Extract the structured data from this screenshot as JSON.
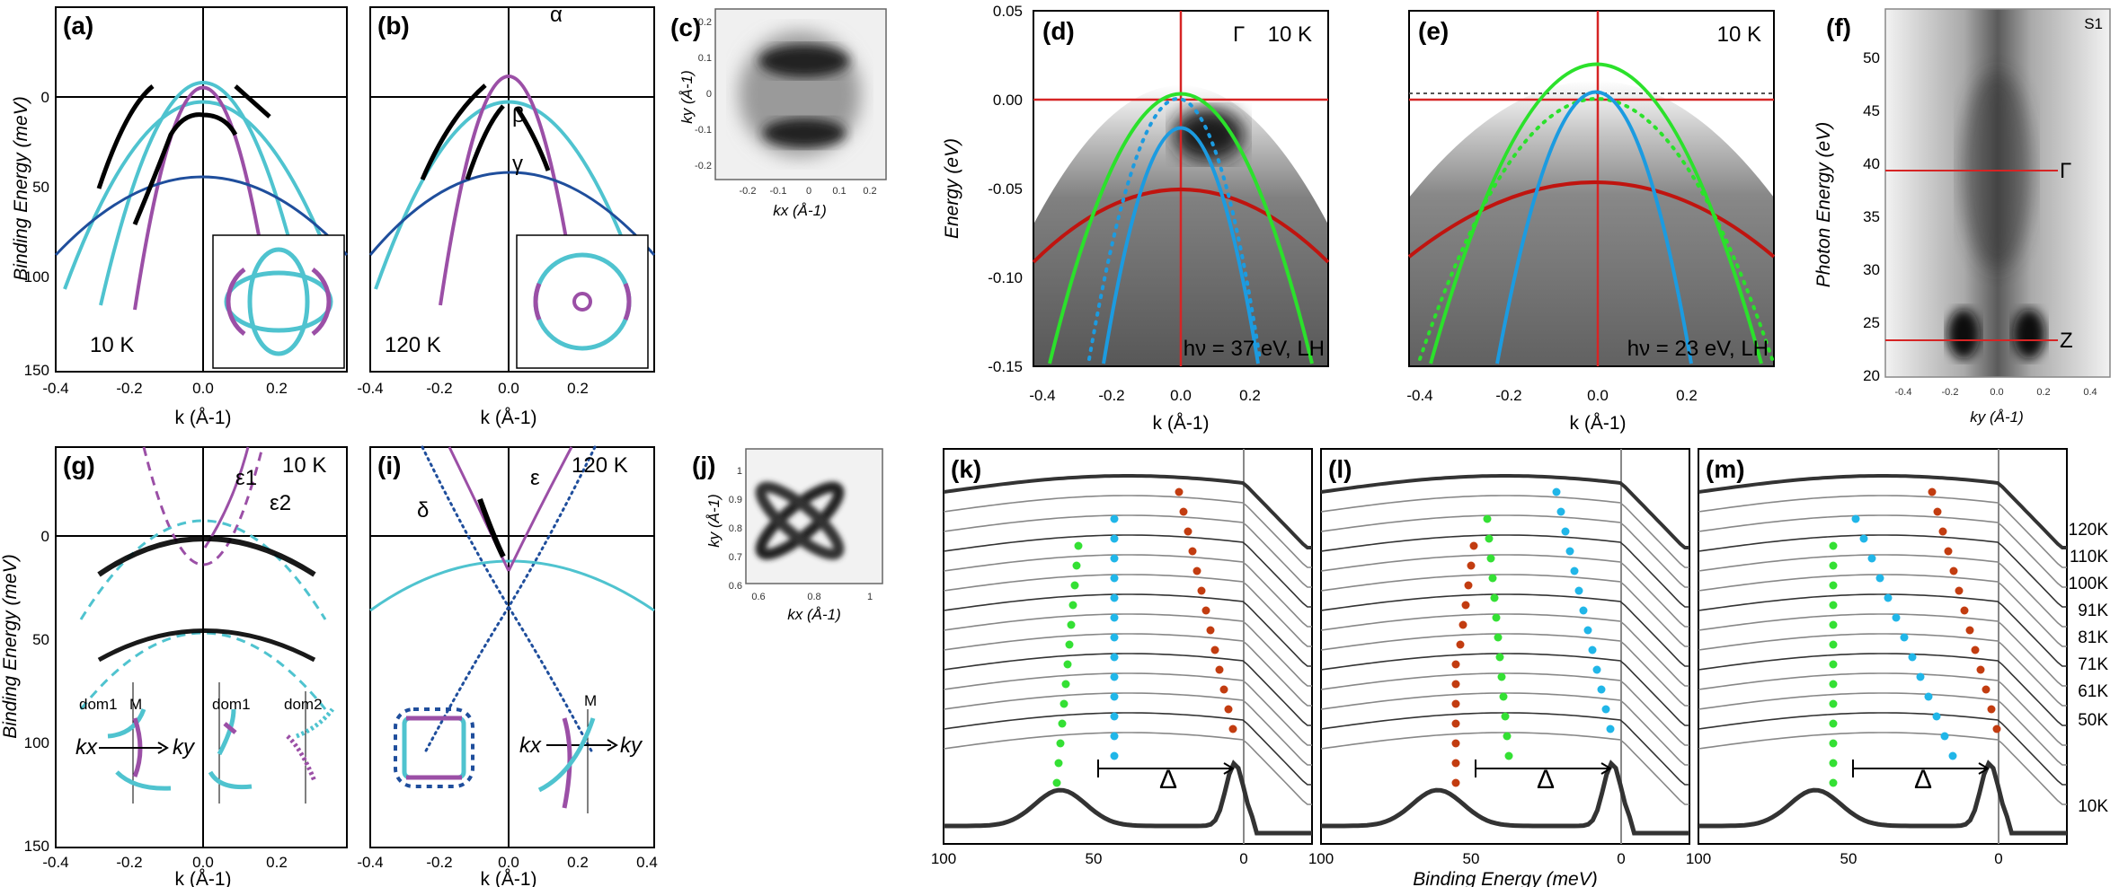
{
  "figure": {
    "colors": {
      "cyan": "#4fc3cf",
      "purple": "#9b4fa6",
      "navy": "#1f4e9c",
      "green": "#2be12b",
      "blue": "#1c9be0",
      "red": "#c0140f",
      "orange": "#c23c10",
      "dotblue": "#20b6e8",
      "dotgreen": "#34e034",
      "yellow": "#e6e24a"
    },
    "panels": {
      "a": {
        "label": "(a)",
        "temp": "10 K"
      },
      "b": {
        "label": "(b)",
        "temp": "120 K",
        "alpha": "α",
        "beta": "β",
        "gamma": "γ"
      },
      "c": {
        "label": "(c)",
        "xlabel": "kx (Å-1)",
        "ylabel": "ky (Å-1)"
      },
      "d": {
        "label": "(d)",
        "gamma": "Γ",
        "temp": "10 K",
        "photon": "hν = 37 eV, LH"
      },
      "e": {
        "label": "(e)",
        "temp": "10 K",
        "photon": "hν = 23 eV, LH"
      },
      "f": {
        "label": "(f)",
        "sample": "S1",
        "ylabel": "Photon Energy (eV)",
        "xlabel": "ky (Å-1)",
        "gamma": "Γ",
        "z": "Z"
      },
      "g": {
        "label": "(g)",
        "temp": "10 K",
        "eps1": "ε1",
        "eps2": "ε2",
        "dom1": "dom1",
        "dom2": "dom2",
        "M": "M",
        "kx": "kx",
        "ky": "ky"
      },
      "i": {
        "label": "(i)",
        "temp": "120 K",
        "delta": "δ",
        "eps": "ε",
        "M": "M",
        "kx": "kx",
        "ky": "ky"
      },
      "j": {
        "label": "(j)",
        "xlabel": "kx (Å-1)",
        "ylabel": "ky (Å-1)"
      },
      "k": {
        "label": "(k)",
        "delta": "Δ"
      },
      "l": {
        "label": "(l)",
        "delta": "Δ"
      },
      "m": {
        "label": "(m)",
        "delta": "Δ"
      }
    },
    "axes": {
      "binding_energy_label": "Binding Energy (meV)",
      "energy_label": "Energy (eV)",
      "k_label": "k (Å-1)",
      "be_mev_ticks": [
        "0",
        "50",
        "100",
        "150"
      ],
      "k_ticks": [
        "-0.4",
        "-0.2",
        "0.0",
        "0.2"
      ],
      "k_ticks_i": [
        "-0.4",
        "-0.2",
        "0.0",
        "0.2",
        "0.4"
      ],
      "energy_ticks": [
        "0.05",
        "0.00",
        "-0.05",
        "-0.10",
        "-0.15"
      ],
      "k_ticks_de": [
        "-0.4",
        "-0.2",
        "0.0",
        "0.2"
      ],
      "photon_ticks": [
        "20",
        "25",
        "30",
        "35",
        "40",
        "45",
        "50"
      ],
      "ky_ticks_f": [
        "-0.4",
        "-0.2",
        "0.0",
        "0.2",
        "0.4"
      ],
      "c_kx_ticks": [
        "-0.2",
        "-0.1",
        "0",
        "0.1",
        "0.2"
      ],
      "c_ky_ticks": [
        "0.2",
        "0.1",
        "0",
        "-0.1",
        "-0.2"
      ],
      "j_kx_ticks": [
        "0.6",
        "0.8",
        "1"
      ],
      "j_ky_ticks": [
        "1",
        "0.9",
        "0.8",
        "0.7",
        "0.6"
      ],
      "edc_ticks": [
        "100",
        "50",
        "0"
      ]
    },
    "temperatures": [
      "120K",
      "110K",
      "100K",
      "91K",
      "81K",
      "71K",
      "61K",
      "50K",
      "10K"
    ]
  }
}
